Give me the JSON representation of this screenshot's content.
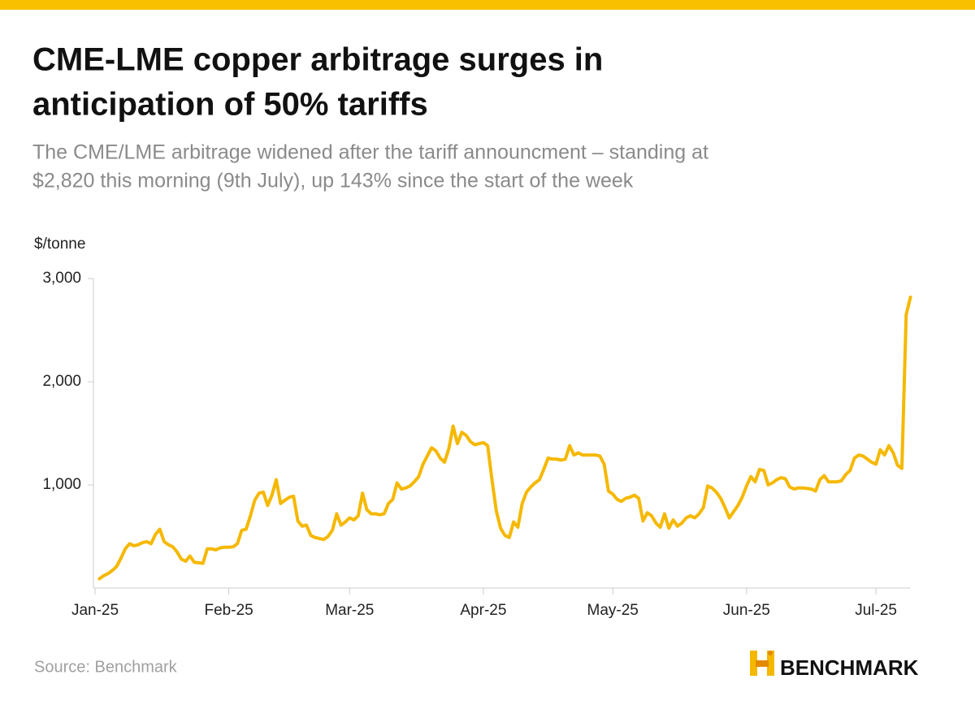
{
  "chart_data": {
    "type": "line",
    "title": [
      "CME-LME copper arbitrage surges in",
      "anticipation of 50% tariffs"
    ],
    "subtitle": [
      "The CME/LME arbitrage widened after the tariff announcment – standing at",
      "$2,820 this morning (9th July), up 143% since the start of the week"
    ],
    "y_label": "$/tonne",
    "source": "Source: Benchmark",
    "brand": "BENCHMARK",
    "xlim": [
      0,
      189
    ],
    "xticks": [
      {
        "value": 0,
        "label": "Jan-25"
      },
      {
        "value": 31,
        "label": "Feb-25"
      },
      {
        "value": 59,
        "label": "Mar-25"
      },
      {
        "value": 90,
        "label": "Apr-25"
      },
      {
        "value": 120,
        "label": "May-25"
      },
      {
        "value": 151,
        "label": "Jun-25"
      },
      {
        "value": 181,
        "label": "Jul-25"
      }
    ],
    "ylim": [
      0,
      3000
    ],
    "yticks": [
      {
        "value": 1000,
        "label": "1,000"
      },
      {
        "value": 2000,
        "label": "2,000"
      },
      {
        "value": 3000,
        "label": "3,000"
      }
    ],
    "x": [
      1,
      2,
      3,
      4,
      5,
      6,
      7,
      8,
      9,
      10,
      11,
      12,
      13,
      14,
      15,
      16,
      17,
      18,
      19,
      20,
      21,
      22,
      23,
      24,
      25,
      26,
      27,
      28,
      29,
      30,
      31,
      32,
      33,
      34,
      35,
      36,
      37,
      38,
      39,
      40,
      41,
      42,
      43,
      44,
      45,
      46,
      47,
      48,
      49,
      50,
      51,
      52,
      53,
      54,
      55,
      56,
      57,
      58,
      59,
      60,
      61,
      62,
      63,
      64,
      65,
      66,
      67,
      68,
      69,
      70,
      71,
      72,
      73,
      74,
      75,
      76,
      77,
      78,
      79,
      80,
      81,
      82,
      83,
      84,
      85,
      86,
      87,
      88,
      89,
      90,
      91,
      92,
      93,
      94,
      95,
      96,
      97,
      98,
      99,
      100,
      101,
      102,
      103,
      104,
      105,
      106,
      107,
      108,
      109,
      110,
      111,
      112,
      113,
      114,
      115,
      116,
      117,
      118,
      119,
      120,
      121,
      122,
      123,
      124,
      125,
      126,
      127,
      128,
      129,
      130,
      131,
      132,
      133,
      134,
      135,
      136,
      137,
      138,
      139,
      140,
      141,
      142,
      143,
      144,
      145,
      146,
      147,
      148,
      149,
      150,
      151,
      152,
      153,
      154,
      155,
      156,
      157,
      158,
      159,
      160,
      161,
      162,
      163,
      164,
      165,
      166,
      167,
      168,
      169,
      170,
      171,
      172,
      173,
      174,
      175,
      176,
      177,
      178,
      179,
      180,
      181,
      182,
      183,
      184,
      185,
      186,
      187,
      188,
      189
    ],
    "series": [
      {
        "name": "CME-LME arbitrage",
        "color": "#f5b800",
        "values": [
          90,
          120,
          140,
          170,
          210,
          290,
          380,
          430,
          410,
          420,
          440,
          450,
          430,
          520,
          570,
          450,
          420,
          400,
          350,
          280,
          260,
          310,
          250,
          245,
          240,
          380,
          380,
          370,
          390,
          395,
          395,
          400,
          430,
          560,
          570,
          700,
          850,
          920,
          930,
          800,
          900,
          1050,
          820,
          850,
          880,
          890,
          650,
          600,
          610,
          510,
          490,
          480,
          470,
          500,
          560,
          720,
          610,
          640,
          680,
          660,
          700,
          920,
          760,
          720,
          720,
          710,
          720,
          820,
          860,
          1020,
          960,
          970,
          990,
          1030,
          1080,
          1200,
          1280,
          1360,
          1330,
          1260,
          1220,
          1350,
          1570,
          1400,
          1510,
          1480,
          1420,
          1390,
          1400,
          1410,
          1380,
          1050,
          750,
          580,
          510,
          490,
          640,
          590,
          820,
          930,
          980,
          1020,
          1050,
          1150,
          1260,
          1250,
          1250,
          1240,
          1250,
          1380,
          1290,
          1310,
          1290,
          1290,
          1290,
          1290,
          1280,
          1200,
          940,
          910,
          860,
          840,
          870,
          880,
          900,
          870,
          650,
          730,
          700,
          630,
          590,
          720,
          580,
          660,
          600,
          630,
          680,
          700,
          680,
          720,
          780,
          990,
          970,
          930,
          870,
          780,
          680,
          740,
          800,
          880,
          990,
          1080,
          1030,
          1150,
          1140,
          1000,
          1020,
          1050,
          1070,
          1060,
          980,
          960,
          970,
          970,
          965,
          960,
          940,
          1050,
          1090,
          1030,
          1030,
          1030,
          1040,
          1100,
          1140,
          1260,
          1290,
          1280,
          1250,
          1220,
          1200,
          1340,
          1290,
          1380,
          1310,
          1190,
          1160,
          2650,
          2820
        ]
      }
    ]
  }
}
